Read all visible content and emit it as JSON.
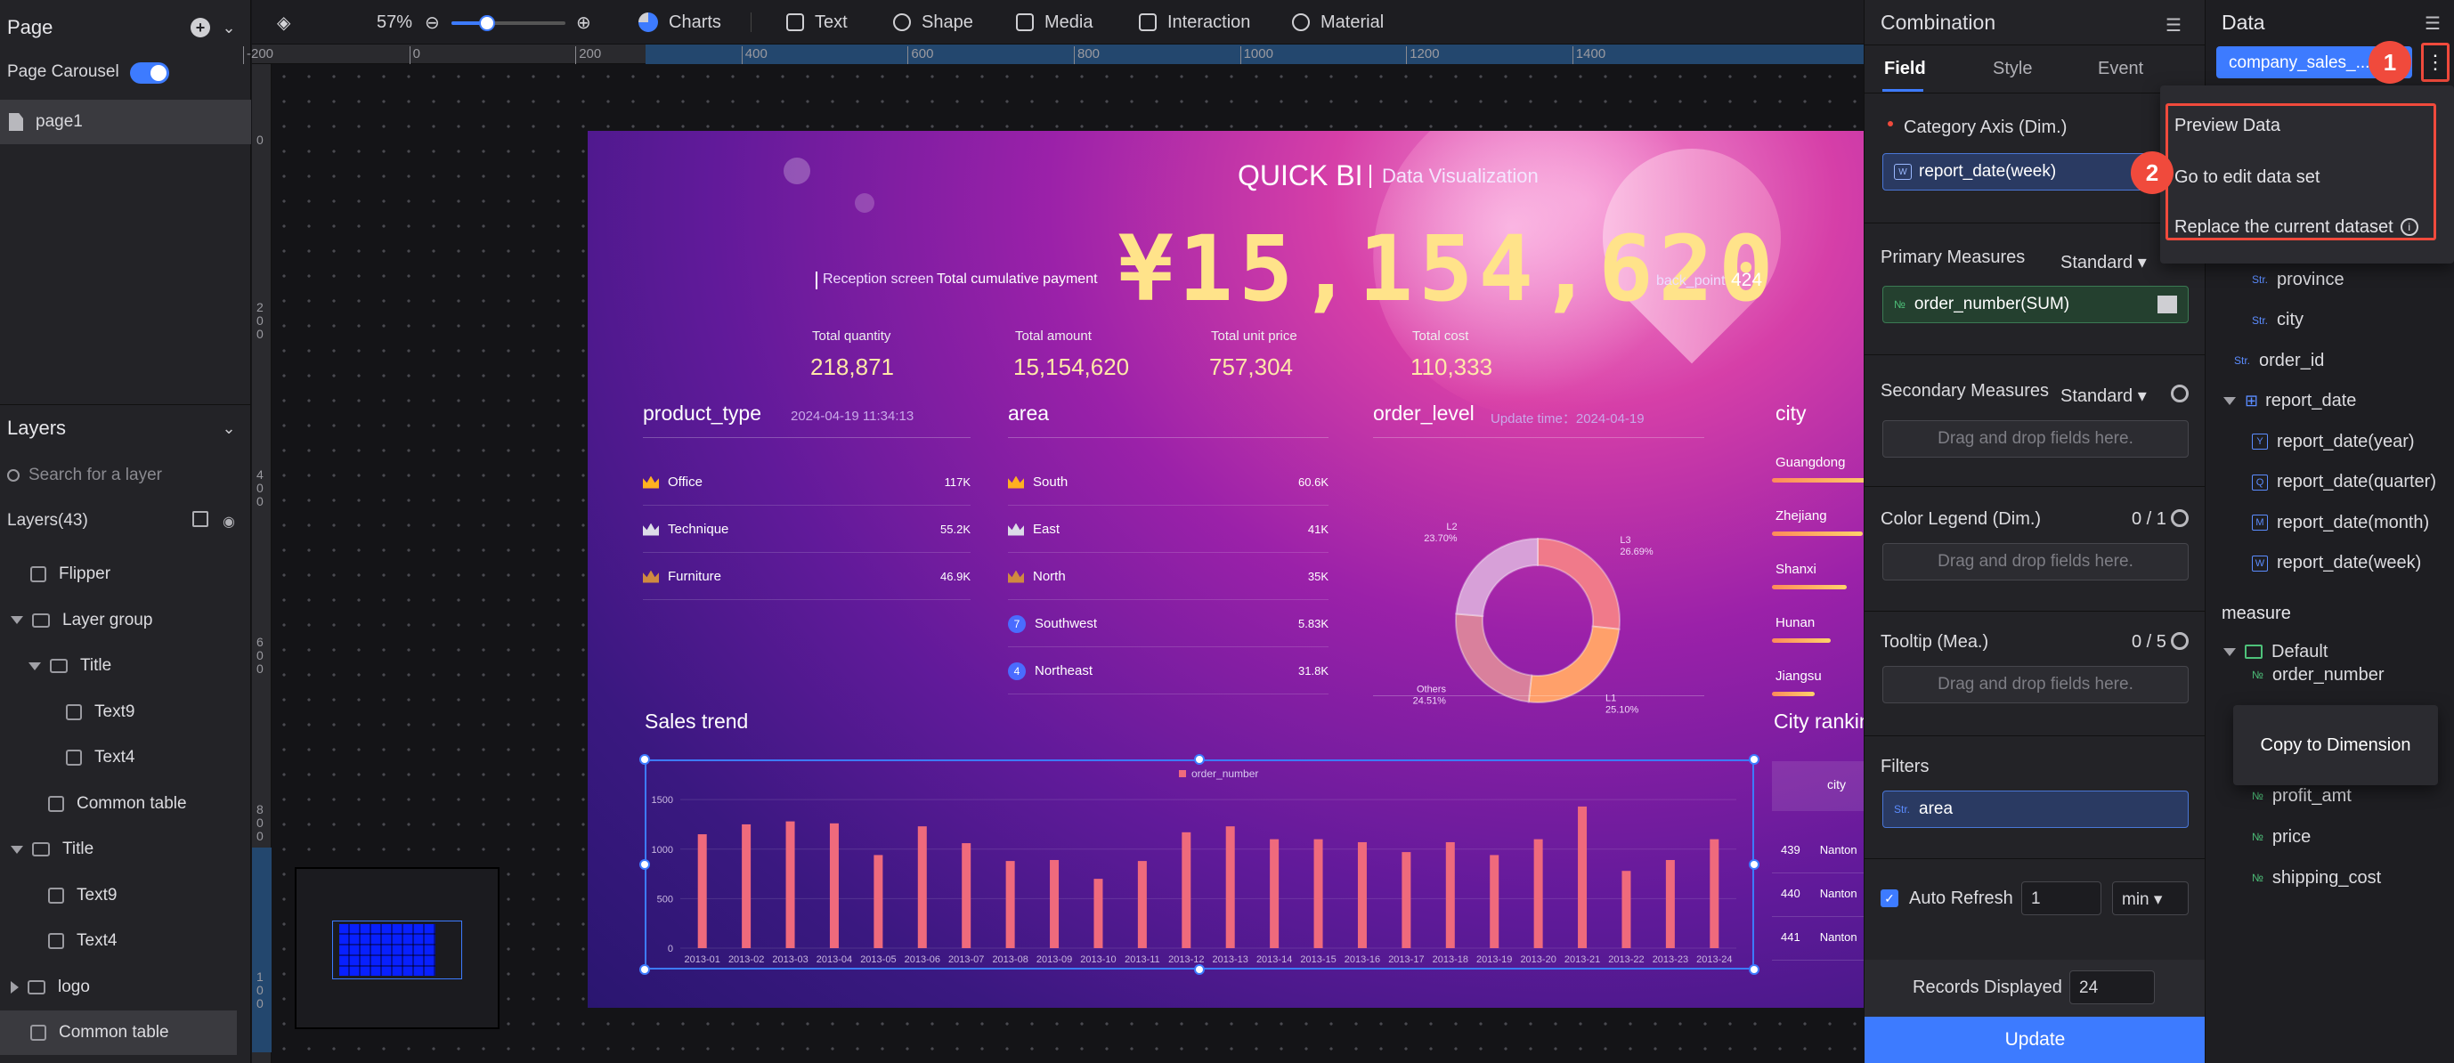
{
  "page_panel": {
    "title": "Page",
    "carousel_label": "Page Carousel",
    "pages": [
      "page1"
    ]
  },
  "layers_panel": {
    "title": "Layers",
    "search_placeholder": "Search for a layer",
    "count_label": "Layers(43)",
    "items": [
      {
        "label": "Flipper",
        "indent": 0,
        "type": "component"
      },
      {
        "label": "Layer group",
        "indent": 0,
        "type": "folder",
        "expanded": true
      },
      {
        "label": "Title",
        "indent": 1,
        "type": "folder",
        "expanded": true
      },
      {
        "label": "Text9",
        "indent": 2,
        "type": "text"
      },
      {
        "label": "Text4",
        "indent": 2,
        "type": "text"
      },
      {
        "label": "Common table",
        "indent": 1,
        "type": "table"
      },
      {
        "label": "Title",
        "indent": 0,
        "type": "folder",
        "expanded": true
      },
      {
        "label": "Text9",
        "indent": 1,
        "type": "text"
      },
      {
        "label": "Text4",
        "indent": 1,
        "type": "text"
      },
      {
        "label": "logo",
        "indent": 0,
        "type": "folder",
        "expanded": false
      },
      {
        "label": "Common table",
        "indent": 0,
        "type": "table",
        "selected": true
      }
    ]
  },
  "toolbar": {
    "zoom": "57%",
    "zoom_level": 0.57,
    "items": [
      "Charts",
      "Text",
      "Shape",
      "Media",
      "Interaction",
      "Material"
    ]
  },
  "ruler": {
    "top_ticks": [
      "-200",
      "0",
      "200",
      "400",
      "600",
      "800",
      "1000",
      "1200",
      "1400"
    ],
    "left_ticks": [
      "0",
      "2\n0\n0",
      "4\n0\n0",
      "6\n0\n0",
      "8\n0\n0",
      "1\n0\n0"
    ]
  },
  "dashboard": {
    "brand": "QUICK BI",
    "subtitle": "Data Visualization",
    "reception_label": "Reception screen",
    "payment_label": "Total cumulative payment",
    "total_payment": "¥15,154,620",
    "back_point_label": "back_point",
    "back_point_value": "424",
    "kpis": [
      {
        "label": "Total quantity",
        "value": "218,871"
      },
      {
        "label": "Total amount",
        "value": "15,154,620"
      },
      {
        "label": "Total unit price",
        "value": "757,304"
      },
      {
        "label": "Total cost",
        "value": "110,333"
      }
    ],
    "product_type": {
      "title": "product_type",
      "timestamp": "2024-04-19 11:34:13",
      "rows": [
        {
          "name": "Office",
          "value": "117K"
        },
        {
          "name": "Technique",
          "value": "55.2K"
        },
        {
          "name": "Furniture",
          "value": "46.9K"
        }
      ]
    },
    "area": {
      "title": "area",
      "rows": [
        {
          "rank": "",
          "name": "South",
          "value": "60.6K"
        },
        {
          "rank": "",
          "name": "East",
          "value": "41K"
        },
        {
          "rank": "",
          "name": "North",
          "value": "35K"
        },
        {
          "rank": "7",
          "name": "Southwest",
          "value": "5.83K"
        },
        {
          "rank": "4",
          "name": "Northeast",
          "value": "31.8K"
        }
      ]
    },
    "order_level": {
      "title": "order_level",
      "update": "Update time：2024-04-19",
      "slices": [
        {
          "label": "L3",
          "pct": "26.69%",
          "value": 26.69,
          "color": "#f07a8a"
        },
        {
          "label": "L1",
          "pct": "25.10%",
          "value": 25.1,
          "color": "#ffa06a"
        },
        {
          "label": "Others",
          "pct": "24.51%",
          "value": 24.51,
          "color": "#d9809c"
        },
        {
          "label": "L2",
          "pct": "23.70%",
          "value": 23.7,
          "color": "#d7a0d8"
        }
      ]
    },
    "city": {
      "title": "city",
      "rows": [
        {
          "name": "Guangdong",
          "share": 1.0
        },
        {
          "name": "Zhejiang",
          "share": 0.85
        },
        {
          "name": "Shanxi",
          "share": 0.7
        },
        {
          "name": "Hunan",
          "share": 0.55
        },
        {
          "name": "Jiangsu",
          "share": 0.4
        }
      ]
    },
    "city_ranking": {
      "title": "City rankin",
      "header": "city",
      "rows": [
        {
          "rank": "439",
          "city": "Nanton"
        },
        {
          "rank": "440",
          "city": "Nanton"
        },
        {
          "rank": "441",
          "city": "Nanton"
        }
      ]
    },
    "sales_trend_title": "Sales trend"
  },
  "chart_data": {
    "type": "bar",
    "legend": "order_number",
    "legend_position": "top",
    "categories": [
      "2013-01",
      "2013-02",
      "2013-03",
      "2013-04",
      "2013-05",
      "2013-06",
      "2013-07",
      "2013-08",
      "2013-09",
      "2013-10",
      "2013-11",
      "2013-12",
      "2013-13",
      "2013-14",
      "2013-15",
      "2013-16",
      "2013-17",
      "2013-18",
      "2013-19",
      "2013-20",
      "2013-21",
      "2013-22",
      "2013-23",
      "2013-24"
    ],
    "series": [
      {
        "name": "order_number",
        "values": [
          1150,
          1250,
          1280,
          1260,
          940,
          1230,
          1060,
          880,
          890,
          700,
          880,
          1170,
          1230,
          1100,
          1100,
          1070,
          970,
          1070,
          940,
          1100,
          1430,
          780,
          890,
          1100
        ]
      }
    ],
    "yticks": [
      "0",
      "500",
      "1000",
      "1500"
    ],
    "ylim": [
      0,
      1600
    ],
    "grid": true
  },
  "props_panel": {
    "title": "Combination",
    "tabs": [
      "Field",
      "Style",
      "Event"
    ],
    "category_axis": "Category Axis (Dim.)",
    "category_field": "report_date(week)",
    "primary_measures": "Primary Measures",
    "standard": "Standard",
    "primary_field": "order_number(SUM)",
    "secondary_measures": "Secondary Measures",
    "drop_hint": "Drag and drop fields here.",
    "color_legend": "Color Legend (Dim.)",
    "color_count": "0 / 1",
    "tooltip": "Tooltip (Mea.)",
    "tooltip_count": "0 / 5",
    "filters": "Filters",
    "filter_field": "area",
    "auto_refresh": "Auto Refresh",
    "refresh_value": "1",
    "refresh_unit": "min",
    "records_label": "Records Displayed",
    "records_value": "24",
    "update_btn": "Update"
  },
  "data_panel": {
    "title": "Data",
    "dataset": "company_sales_...",
    "menu": [
      "Preview Data",
      "Go to edit data set",
      "Replace the current dataset"
    ],
    "callouts": [
      "1",
      "2"
    ],
    "fields": [
      {
        "label": "province",
        "tag": "Str.",
        "indent": 2
      },
      {
        "label": "city",
        "tag": "Str.",
        "indent": 2
      },
      {
        "label": "order_id",
        "tag": "Str.",
        "indent": 1
      },
      {
        "label": "report_date",
        "tag": "dim",
        "indent": 1
      },
      {
        "label": "report_date(year)",
        "tag": "Y",
        "indent": 2
      },
      {
        "label": "report_date(quarter)",
        "tag": "Q",
        "indent": 2
      },
      {
        "label": "report_date(month)",
        "tag": "M",
        "indent": 2
      },
      {
        "label": "report_date(week)",
        "tag": "W",
        "indent": 2
      }
    ],
    "measure_title": "measure",
    "default_folder": "Default",
    "measures": [
      "order_number",
      "profit_amt",
      "price",
      "shipping_cost"
    ],
    "context_menu": "Copy to Dimension"
  }
}
